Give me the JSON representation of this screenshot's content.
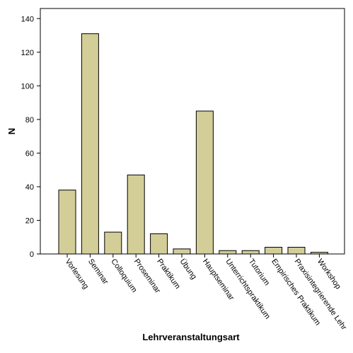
{
  "chart_data": {
    "type": "bar",
    "categories": [
      "Vorlesung",
      "Seminar",
      "Colloquium",
      "Proseminar",
      "Praktikum",
      "Übung",
      "Hauptseminar",
      "Unterrichtspraktikum",
      "Tutorium",
      "Empirisches Praktikum",
      "Praxisintegrierende Lehr",
      "Workshop"
    ],
    "values": [
      38,
      131,
      13,
      47,
      12,
      3,
      85,
      2,
      2,
      4,
      4,
      1
    ],
    "xlabel": "Lehrveranstaltungsart",
    "ylabel": "N",
    "ylim": [
      0,
      146
    ],
    "yticks": [
      0,
      20,
      40,
      60,
      80,
      100,
      120,
      140
    ],
    "grid": false,
    "colors": {
      "bar_fill": "#d3cd98",
      "bar_stroke": "#000000",
      "axis": "#000000",
      "background": "#ffffff"
    }
  }
}
